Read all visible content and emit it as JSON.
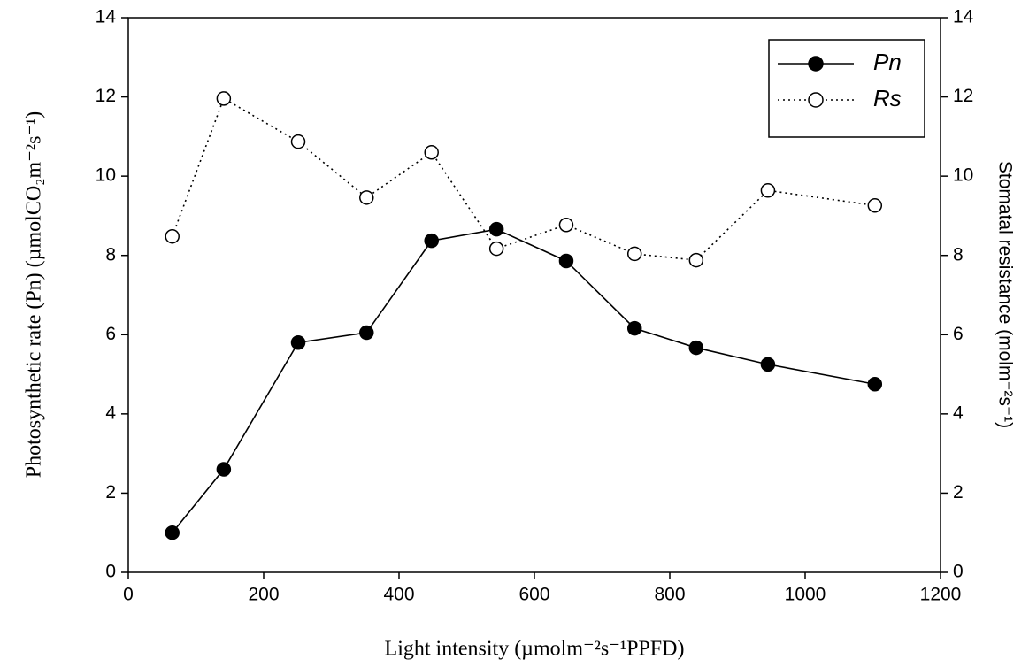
{
  "chart_data": {
    "type": "line",
    "xlabel": "Light intensity (µmolm⁻²s⁻¹PPFD)",
    "ylabel": "Photosynthetic rate (Pn) (µmolCO₂m⁻²s⁻¹)",
    "y2label": "Stomatal resistance (molm⁻²s⁻¹)",
    "x": [
      65,
      141,
      251,
      352,
      448,
      544,
      647,
      748,
      839,
      945,
      1103
    ],
    "xlim": [
      0,
      1200
    ],
    "xticks": [
      0,
      200,
      400,
      600,
      800,
      1000,
      1200
    ],
    "ylim": [
      0,
      14
    ],
    "yticks": [
      0,
      2,
      4,
      6,
      8,
      10,
      12,
      14
    ],
    "y2lim": [
      0,
      14
    ],
    "y2ticks": [
      0,
      2,
      4,
      6,
      8,
      10,
      12,
      14
    ],
    "legend": "upper right",
    "series": [
      {
        "name": "Pn",
        "color": "#000000",
        "marker_fill": "#000000",
        "line_style": "solid",
        "axis": "y",
        "values": [
          1.0,
          2.6,
          5.8,
          6.05,
          8.37,
          8.66,
          7.86,
          6.16,
          5.67,
          5.25,
          4.75
        ]
      },
      {
        "name": "Rs",
        "color": "#000000",
        "marker_fill": "#ffffff",
        "line_style": "dotted",
        "axis": "y2",
        "values": [
          8.48,
          11.96,
          10.87,
          9.46,
          10.6,
          8.17,
          8.77,
          8.04,
          7.88,
          9.64,
          9.26
        ]
      }
    ]
  }
}
